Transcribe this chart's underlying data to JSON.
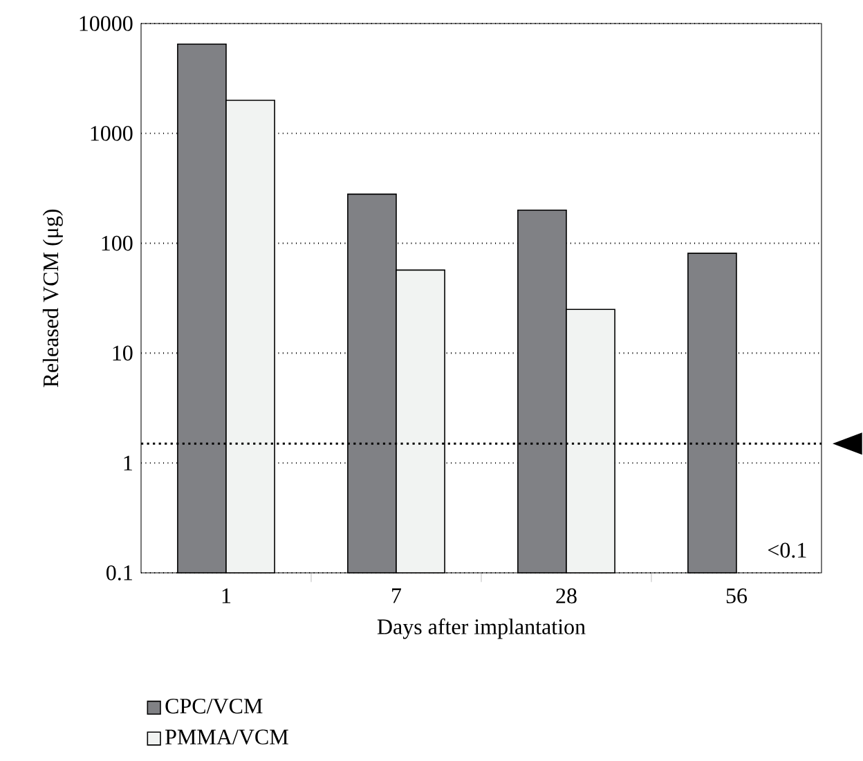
{
  "chart_data": {
    "type": "bar",
    "log": "y",
    "xlabel": "Days after implantation",
    "ylabel": "Released VCM (μg)",
    "categories": [
      "1",
      "7",
      "28",
      "56"
    ],
    "series": [
      {
        "name": "CPC/VCM",
        "color": "#808185",
        "values": [
          6500,
          280,
          200,
          81
        ]
      },
      {
        "name": "PMMA/VCM",
        "color": "#f1f3f2",
        "values": [
          2000,
          57,
          25,
          null
        ]
      }
    ],
    "ylim": [
      0.1,
      10000
    ],
    "yticks": [
      0.1,
      1,
      10,
      100,
      1000,
      10000
    ],
    "grid": "y",
    "legend": "bottom left",
    "ref_lines": [
      {
        "axis": "y",
        "value": 1.5,
        "line_style": "dotted"
      }
    ],
    "annotations": [
      "<0.1"
    ]
  }
}
